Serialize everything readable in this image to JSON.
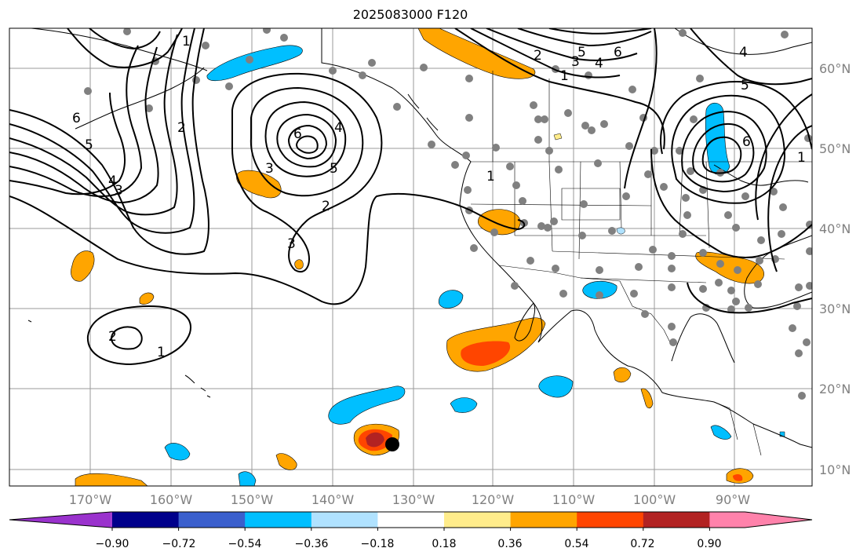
{
  "title": "2025083000 F120",
  "lon_labels": [
    "170°W",
    "160°W",
    "150°W",
    "140°W",
    "130°W",
    "120°W",
    "110°W",
    "100°W",
    "90°W"
  ],
  "lat_labels": [
    "60°N",
    "50°N",
    "40°N",
    "30°N",
    "20°N",
    "10°N"
  ],
  "colorbar": {
    "ticks": [
      "−0.90",
      "−0.72",
      "−0.54",
      "−0.36",
      "−0.18",
      "0.18",
      "0.36",
      "0.54",
      "0.72",
      "0.90"
    ],
    "colors": [
      "#9a32cd",
      "#00008b",
      "#3a5fcd",
      "#00bfff",
      "#b0e2ff",
      "#ffffff",
      "#ffec8b",
      "#ffa500",
      "#ff4500",
      "#b22222",
      "#ff82ab"
    ]
  },
  "contour_labels": [
    {
      "text": "1",
      "id": "contour-label-1-a"
    },
    {
      "text": "2",
      "id": "contour-label-2-a"
    },
    {
      "text": "6",
      "id": "contour-label-6-a"
    },
    {
      "text": "5",
      "id": "contour-label-5-a"
    },
    {
      "text": "4",
      "id": "contour-label-4-a"
    },
    {
      "text": "3",
      "id": "contour-label-3-a"
    },
    {
      "text": "6",
      "id": "contour-label-6-b"
    },
    {
      "text": "4",
      "id": "contour-label-4-b"
    },
    {
      "text": "5",
      "id": "contour-label-5-b"
    },
    {
      "text": "3",
      "id": "contour-label-3-b"
    },
    {
      "text": "2",
      "id": "contour-label-2-b"
    },
    {
      "text": "3",
      "id": "contour-label-3-c"
    },
    {
      "text": "2",
      "id": "contour-label-2-c"
    },
    {
      "text": "1",
      "id": "contour-label-1-c"
    },
    {
      "text": "1",
      "id": "contour-label-1-d"
    },
    {
      "text": "2",
      "id": "contour-label-2-d"
    },
    {
      "text": "5",
      "id": "contour-label-5-d"
    },
    {
      "text": "3",
      "id": "contour-label-3-d"
    },
    {
      "text": "4",
      "id": "contour-label-4-d"
    },
    {
      "text": "6",
      "id": "contour-label-6-d"
    },
    {
      "text": "1",
      "id": "contour-label-1-e"
    },
    {
      "text": "4",
      "id": "contour-label-4-e"
    },
    {
      "text": "5",
      "id": "contour-label-5-e"
    },
    {
      "text": "6",
      "id": "contour-label-6-e"
    },
    {
      "text": "1",
      "id": "contour-label-1-f"
    }
  ]
}
